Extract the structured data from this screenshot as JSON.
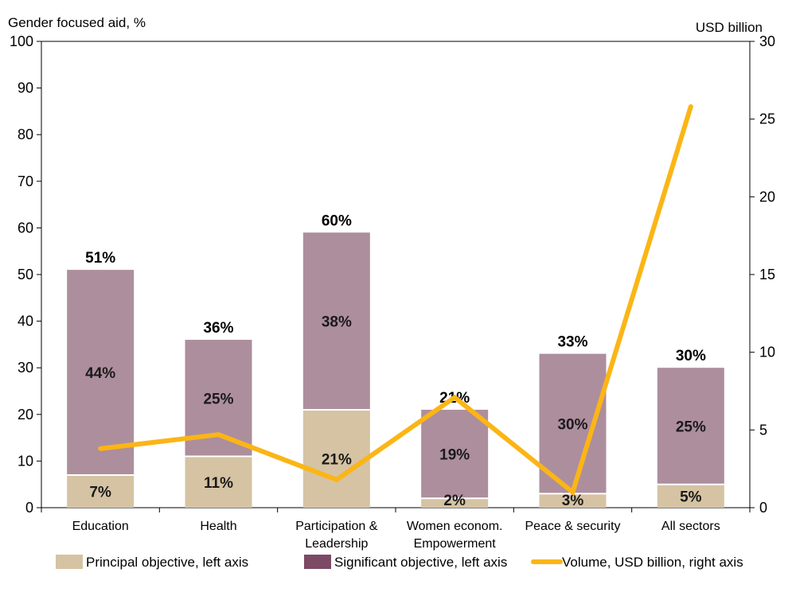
{
  "chart_data": {
    "type": "bar",
    "stacked": true,
    "categories": [
      "Education",
      "Health",
      "Participation & Leadership",
      "Women econom. Empowerment",
      "Peace & security",
      "All sectors"
    ],
    "category_lines": [
      [
        "Education"
      ],
      [
        "Health"
      ],
      [
        "Participation &",
        "Leadership"
      ],
      [
        "Women econom.",
        "Empowerment"
      ],
      [
        "Peace & security"
      ],
      [
        "All sectors"
      ]
    ],
    "series": [
      {
        "name": "Principal objective, left axis",
        "axis": "left",
        "color": "#d5c3a3",
        "values": [
          7,
          11,
          21,
          2,
          3,
          5
        ],
        "labels": [
          "7%",
          "11%",
          "21%",
          "2%",
          "3%",
          "5%"
        ]
      },
      {
        "name": "Significant objective, left axis",
        "axis": "left",
        "color": "#ad8e9d",
        "legend_color": "#7c4a65",
        "values": [
          44,
          25,
          38,
          19,
          30,
          25
        ],
        "labels": [
          "44%",
          "25%",
          "38%",
          "19%",
          "30%",
          "25%"
        ]
      },
      {
        "name": "Volume, USD billion, right axis",
        "axis": "right",
        "type": "line",
        "color": "#fbb516",
        "values": [
          3.8,
          4.7,
          1.8,
          7.1,
          1.0,
          25.8
        ]
      }
    ],
    "totals": [
      51,
      36,
      60,
      21,
      33,
      30
    ],
    "total_labels": [
      "51%",
      "36%",
      "60%",
      "21%",
      "33%",
      "30%"
    ],
    "y_left": {
      "title": "Gender focused aid, %",
      "range": [
        0,
        100
      ],
      "ticks": [
        0,
        10,
        20,
        30,
        40,
        50,
        60,
        70,
        80,
        90,
        100
      ]
    },
    "y_right": {
      "title": "USD billion",
      "range": [
        0,
        30
      ],
      "ticks": [
        0,
        5,
        10,
        15,
        20,
        25,
        30
      ]
    },
    "grid": false,
    "legend_position": "bottom"
  }
}
